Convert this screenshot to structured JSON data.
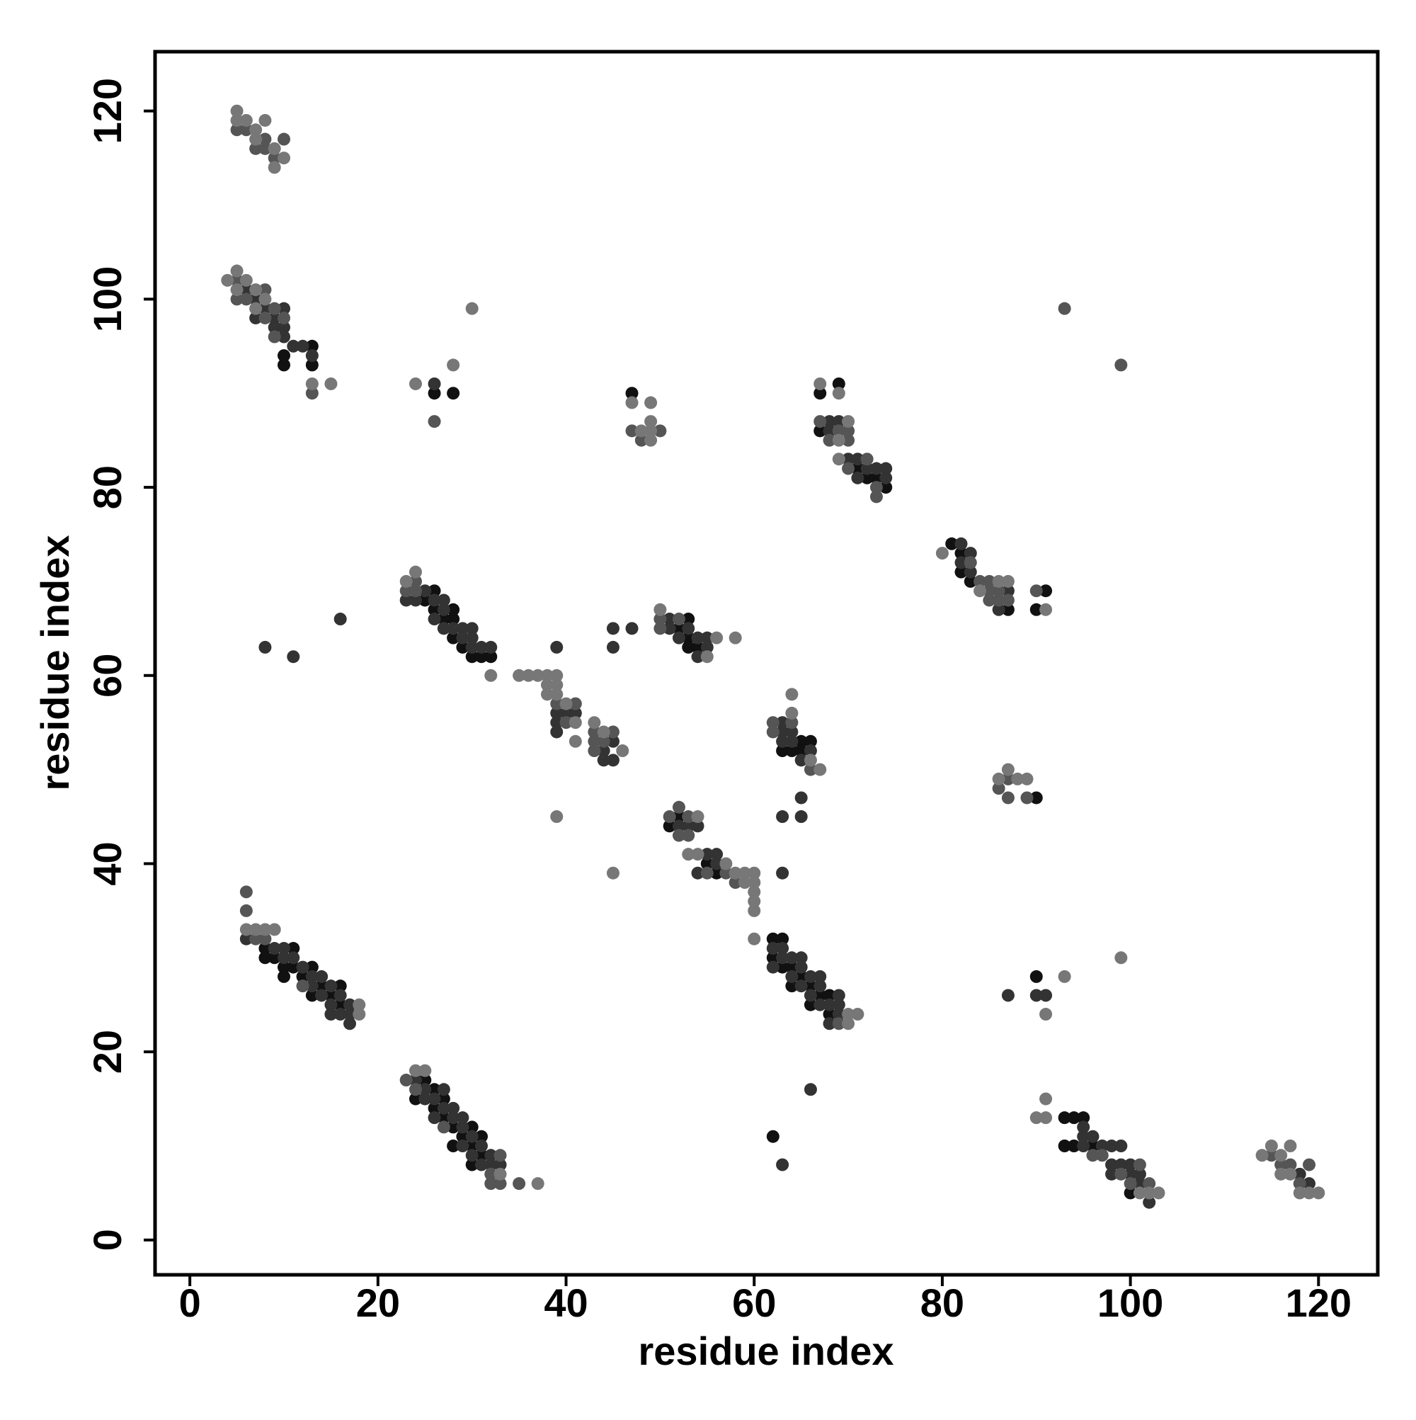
{
  "chart_data": {
    "type": "scatter",
    "x_label": "residue index",
    "y_label": "residue index",
    "xlim": [
      -3.7,
      126.3
    ],
    "ylim": [
      -3.7,
      126.3
    ],
    "xticks": [
      0,
      20,
      40,
      60,
      80,
      100,
      120
    ],
    "yticks": [
      0,
      20,
      40,
      60,
      80,
      100,
      120
    ],
    "grid": false,
    "series": [
      {
        "color": "#111111",
        "x": [
          10,
          10,
          13,
          13,
          26,
          28,
          47,
          67,
          69,
          67,
          71,
          72,
          73,
          74,
          81,
          82,
          82,
          83,
          87,
          90,
          91,
          25,
          26,
          27,
          28,
          28,
          29,
          30,
          31,
          32,
          26,
          28,
          53,
          53,
          53,
          52,
          54,
          65,
          65,
          63,
          64,
          66,
          51,
          52,
          55,
          56,
          90,
          8,
          8,
          9,
          10,
          10,
          11,
          11,
          12,
          13,
          13,
          14,
          15,
          16,
          16,
          62,
          63,
          62,
          63,
          64,
          64,
          65,
          66,
          66,
          67,
          68,
          68,
          90,
          62,
          24,
          25,
          26,
          26,
          27,
          27,
          28,
          28,
          29,
          30,
          30,
          30,
          31,
          31,
          93,
          93,
          94,
          95,
          94,
          96,
          100
        ],
        "values": [
          93,
          94,
          95,
          93,
          90,
          90,
          90,
          90,
          91,
          86,
          82,
          81,
          81,
          80,
          74,
          73,
          71,
          70,
          67,
          67,
          69,
          68,
          67,
          66,
          66,
          64,
          63,
          62,
          62,
          62,
          69,
          67,
          66,
          64,
          63,
          65,
          63,
          53,
          52,
          52,
          52,
          53,
          44,
          45,
          40,
          39,
          47,
          31,
          30,
          30,
          29,
          28,
          31,
          29,
          28,
          29,
          26,
          27,
          26,
          27,
          25,
          32,
          32,
          30,
          29,
          29,
          27,
          28,
          27,
          25,
          26,
          26,
          24,
          28,
          11,
          15,
          17,
          16,
          14,
          15,
          13,
          12,
          10,
          11,
          12,
          10,
          8,
          11,
          9,
          13,
          10,
          10,
          13,
          13,
          10,
          5
        ]
      },
      {
        "color": "#333333",
        "x": [
          6,
          7,
          8,
          9,
          9,
          10,
          10,
          11,
          12,
          13,
          7,
          10,
          26,
          68,
          68,
          69,
          70,
          71,
          71,
          72,
          73,
          74,
          74,
          82,
          83,
          83,
          82,
          86,
          87,
          23,
          24,
          25,
          26,
          26,
          27,
          27,
          27,
          28,
          29,
          29,
          30,
          30,
          30,
          31,
          32,
          39,
          45,
          47,
          45,
          8,
          11,
          16,
          39,
          39,
          39,
          40,
          41,
          44,
          44,
          45,
          45,
          51,
          52,
          53,
          54,
          54,
          55,
          55,
          51,
          63,
          63,
          63,
          64,
          64,
          65,
          66,
          65,
          63,
          65,
          63,
          52,
          53,
          54,
          54,
          55,
          56,
          56,
          6,
          9,
          10,
          10,
          11,
          12,
          13,
          13,
          14,
          14,
          15,
          15,
          15,
          16,
          16,
          17,
          17,
          17,
          62,
          62,
          63,
          63,
          64,
          64,
          65,
          65,
          65,
          66,
          66,
          67,
          67,
          67,
          68,
          68,
          69,
          69,
          69,
          90,
          91,
          87,
          66,
          63,
          24,
          25,
          25,
          26,
          26,
          27,
          27,
          28,
          28,
          29,
          29,
          29,
          30,
          30,
          31,
          31,
          32,
          32,
          33,
          95,
          95,
          95,
          96,
          97,
          98,
          98,
          98,
          99,
          99,
          100,
          100,
          101,
          101,
          102,
          118,
          119
        ],
        "values": [
          101,
          100,
          99,
          98,
          97,
          97,
          96,
          95,
          95,
          94,
          98,
          99,
          91,
          87,
          86,
          87,
          83,
          83,
          81,
          82,
          82,
          82,
          81,
          74,
          73,
          71,
          72,
          67,
          69,
          68,
          68,
          69,
          68,
          66,
          68,
          67,
          65,
          65,
          65,
          64,
          65,
          64,
          63,
          63,
          63,
          63,
          65,
          65,
          63,
          63,
          62,
          66,
          56,
          55,
          54,
          56,
          56,
          52,
          51,
          51,
          53,
          66,
          64,
          65,
          64,
          62,
          64,
          63,
          65,
          55,
          54,
          53,
          54,
          53,
          51,
          52,
          47,
          45,
          45,
          39,
          44,
          44,
          44,
          39,
          41,
          41,
          40,
          32,
          31,
          31,
          30,
          30,
          29,
          28,
          27,
          28,
          26,
          27,
          25,
          24,
          26,
          24,
          25,
          24,
          23,
          31,
          29,
          31,
          30,
          30,
          28,
          30,
          29,
          27,
          28,
          26,
          28,
          27,
          25,
          25,
          23,
          26,
          25,
          24,
          26,
          26,
          26,
          16,
          8,
          17,
          16,
          15,
          15,
          13,
          16,
          14,
          14,
          13,
          13,
          12,
          10,
          11,
          9,
          10,
          8,
          9,
          8,
          8,
          12,
          11,
          10,
          11,
          10,
          10,
          8,
          7,
          10,
          8,
          8,
          7,
          7,
          6,
          4,
          7,
          6
        ]
      },
      {
        "color": "#555555",
        "x": [
          5,
          6,
          7,
          8,
          8,
          9,
          10,
          5,
          5,
          6,
          8,
          8,
          9,
          9,
          10,
          13,
          26,
          93,
          99,
          48,
          50,
          47,
          67,
          68,
          69,
          70,
          70,
          70,
          72,
          73,
          73,
          83,
          84,
          85,
          85,
          85,
          86,
          86,
          87,
          90,
          23,
          24,
          24,
          39,
          40,
          41,
          43,
          43,
          43,
          44,
          45,
          50,
          50,
          52,
          62,
          62,
          64,
          66,
          51,
          52,
          52,
          53,
          53,
          55,
          57,
          58,
          86,
          87,
          87,
          89,
          6,
          6,
          7,
          8,
          12,
          69,
          23,
          24,
          27,
          32,
          32,
          33,
          33,
          35,
          96,
          97,
          99,
          100,
          101,
          102,
          115,
          116,
          117,
          119,
          118
        ],
        "values": [
          118,
          118,
          116,
          117,
          116,
          115,
          117,
          102,
          100,
          100,
          101,
          98,
          99,
          96,
          98,
          90,
          87,
          99,
          93,
          85,
          86,
          86,
          87,
          85,
          86,
          86,
          85,
          82,
          83,
          80,
          79,
          72,
          70,
          70,
          69,
          68,
          69,
          68,
          68,
          69,
          69,
          70,
          69,
          57,
          55,
          57,
          54,
          53,
          52,
          53,
          54,
          65,
          66,
          66,
          55,
          54,
          55,
          50,
          45,
          46,
          43,
          45,
          43,
          39,
          39,
          38,
          48,
          49,
          47,
          47,
          35,
          37,
          32,
          32,
          27,
          23,
          17,
          16,
          12,
          7,
          6,
          9,
          6,
          6,
          9,
          9,
          7,
          6,
          8,
          6,
          9,
          8,
          8,
          8,
          6
        ]
      },
      {
        "color": "#777777",
        "x": [
          5,
          5,
          6,
          7,
          7,
          8,
          9,
          9,
          10,
          4,
          5,
          6,
          5,
          7,
          8,
          7,
          13,
          15,
          30,
          24,
          28,
          49,
          47,
          48,
          49,
          49,
          49,
          67,
          69,
          69,
          70,
          69,
          80,
          84,
          86,
          87,
          91,
          24,
          23,
          32,
          35,
          36,
          37,
          38,
          38,
          39,
          39,
          38,
          39,
          40,
          41,
          41,
          43,
          44,
          46,
          39,
          45,
          50,
          56,
          58,
          55,
          64,
          64,
          66,
          67,
          54,
          53,
          57,
          58,
          59,
          59,
          60,
          60,
          60,
          60,
          60,
          60,
          54,
          87,
          86,
          88,
          89,
          6,
          7,
          8,
          9,
          18,
          18,
          70,
          70,
          71,
          93,
          99,
          91,
          91,
          90,
          91,
          24,
          25,
          33,
          37,
          101,
          102,
          103,
          114,
          115,
          116,
          116,
          117,
          117,
          118,
          119,
          120
        ],
        "values": [
          120,
          119,
          119,
          118,
          117,
          119,
          116,
          114,
          115,
          102,
          103,
          102,
          101,
          101,
          100,
          99,
          91,
          91,
          99,
          91,
          93,
          89,
          89,
          86,
          85,
          87,
          86,
          91,
          90,
          85,
          87,
          83,
          73,
          69,
          70,
          70,
          67,
          71,
          70,
          60,
          60,
          60,
          60,
          60,
          59,
          60,
          59,
          58,
          58,
          57,
          55,
          53,
          55,
          54,
          52,
          45,
          39,
          67,
          64,
          64,
          62,
          58,
          56,
          51,
          50,
          41,
          41,
          40,
          39,
          39,
          38,
          39,
          38,
          37,
          36,
          35,
          32,
          45,
          50,
          49,
          49,
          49,
          33,
          33,
          33,
          33,
          25,
          24,
          24,
          23,
          24,
          28,
          30,
          24,
          15,
          13,
          13,
          18,
          18,
          7,
          6,
          5,
          5,
          5,
          9,
          10,
          9,
          7,
          10,
          7,
          5,
          5,
          5
        ]
      }
    ]
  }
}
